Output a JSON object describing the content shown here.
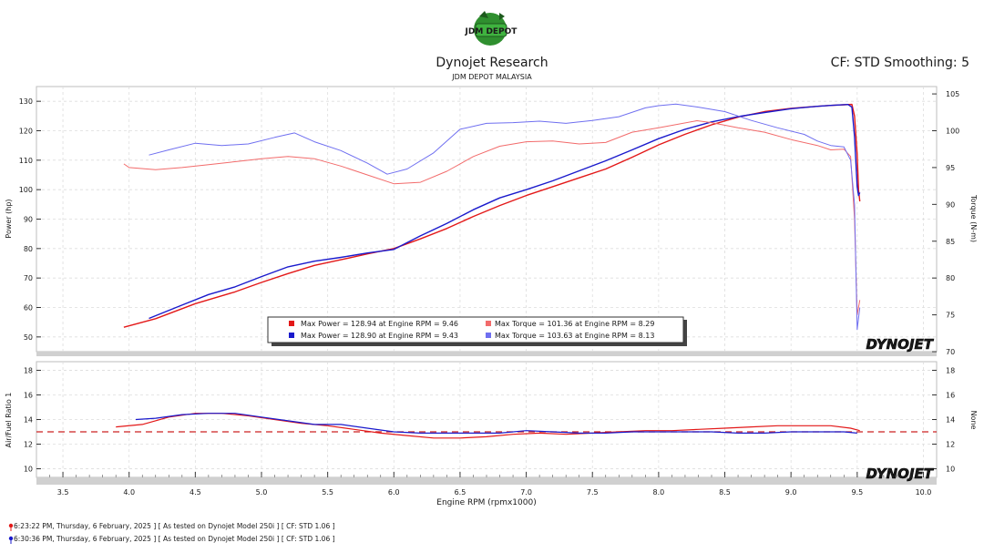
{
  "header": {
    "title": "Dynojet Research",
    "subtitle": "JDM DEPOT MALAYSIA",
    "cf_label": "CF: STD Smoothing: 5",
    "logo_text": "JDM DEPOT"
  },
  "brand_watermark": "DYNOJET",
  "colors": {
    "run1_power": "#e31818",
    "run2_power": "#1a1acc",
    "run1_torque": "#f26b6b",
    "run2_torque": "#6f6ff0",
    "afr_target": "#cc2222",
    "background_band": "#f2f2f2"
  },
  "footer": {
    "runs": [
      "6:23:22 PM, Thursday, 6 February, 2025 ] [ As tested on Dynojet Model 250i ] [ CF: STD 1.06 ]",
      "6:30:36 PM, Thursday, 6 February, 2025 ] [ As tested on Dynojet Model 250i ] [ CF: STD 1.06 ]"
    ]
  },
  "chart_data": [
    {
      "type": "line",
      "xlabel": "Engine RPM (rpmx1000)",
      "ylabel": "Power (hp)",
      "y2label": "Torque (N-m)",
      "xlim": [
        3.3,
        10.1
      ],
      "ylim": [
        45,
        135
      ],
      "y2lim": [
        70,
        106
      ],
      "xticks": [
        3.5,
        4.0,
        4.5,
        5.0,
        5.5,
        6.0,
        6.5,
        7.0,
        7.5,
        8.0,
        8.5,
        9.0,
        9.5,
        10.0
      ],
      "xtick_labels": [
        "3.5",
        "4.0",
        "4.5",
        "5.0",
        "5.5",
        "6.0",
        "6.5",
        "7.0",
        "7.5",
        "8.0",
        "8.5",
        "9.0",
        "9.5",
        "10.0"
      ],
      "yticks": [
        50,
        60,
        70,
        80,
        90,
        100,
        110,
        120,
        130
      ],
      "y2ticks": [
        70,
        75,
        80,
        85,
        90,
        95,
        100,
        105
      ],
      "grid": true,
      "legend": {
        "placement": "bottom-center",
        "entries": [
          "Max Power = 128.94 at Engine RPM = 9.46",
          "Max Torque = 101.36 at Engine RPM = 8.29",
          "Max Power = 128.90 at Engine RPM = 9.43",
          "Max Torque = 103.63 at Engine RPM = 8.13"
        ]
      },
      "series": [
        {
          "axis": "power",
          "x": [
            3.96,
            4.2,
            4.5,
            4.8,
            5.0,
            5.2,
            5.4,
            5.6,
            5.8,
            6.0,
            6.2,
            6.4,
            6.6,
            6.8,
            7.0,
            7.2,
            7.4,
            7.6,
            7.8,
            8.0,
            8.2,
            8.4,
            8.6,
            8.8,
            9.0,
            9.2,
            9.3,
            9.4,
            9.46,
            9.48,
            9.5,
            9.51,
            9.52
          ],
          "values": [
            53.3,
            56.2,
            61.3,
            65.3,
            68.5,
            71.5,
            74.3,
            76.2,
            78.2,
            80.0,
            83.3,
            86.8,
            90.9,
            94.6,
            98.0,
            101.0,
            104.0,
            107.0,
            111.0,
            115.2,
            118.8,
            122.0,
            124.6,
            126.5,
            127.6,
            128.3,
            128.6,
            128.8,
            128.94,
            125.0,
            112.0,
            100.0,
            96.0
          ]
        },
        {
          "axis": "power",
          "x": [
            4.15,
            4.4,
            4.6,
            4.8,
            5.0,
            5.2,
            5.4,
            5.6,
            5.8,
            6.0,
            6.2,
            6.4,
            6.6,
            6.8,
            7.0,
            7.2,
            7.4,
            7.6,
            7.8,
            8.0,
            8.2,
            8.4,
            8.6,
            8.8,
            9.0,
            9.2,
            9.3,
            9.43,
            9.46,
            9.48,
            9.5,
            9.51,
            9.52
          ],
          "values": [
            56.3,
            60.8,
            64.4,
            67.0,
            70.5,
            73.8,
            75.7,
            77.0,
            78.5,
            79.7,
            84.3,
            88.5,
            93.2,
            97.2,
            100.0,
            103.0,
            106.4,
            109.8,
            113.5,
            117.3,
            120.5,
            123.0,
            124.8,
            126.2,
            127.5,
            128.3,
            128.6,
            128.9,
            128.0,
            118.0,
            101.0,
            98.0,
            99.0
          ]
        },
        {
          "axis": "torque",
          "x": [
            3.96,
            4.0,
            4.2,
            4.4,
            4.6,
            4.8,
            5.0,
            5.2,
            5.4,
            5.6,
            5.8,
            6.0,
            6.2,
            6.4,
            6.6,
            6.8,
            7.0,
            7.2,
            7.4,
            7.6,
            7.8,
            8.0,
            8.29,
            8.4,
            8.6,
            8.8,
            9.0,
            9.2,
            9.3,
            9.4,
            9.45,
            9.48,
            9.5,
            9.52
          ],
          "values": [
            95.5,
            95.0,
            94.7,
            95.0,
            95.4,
            95.8,
            96.2,
            96.5,
            96.2,
            95.2,
            94.0,
            92.8,
            93.0,
            94.5,
            96.5,
            97.9,
            98.5,
            98.6,
            98.2,
            98.4,
            99.8,
            100.4,
            101.36,
            101.1,
            100.4,
            99.8,
            98.8,
            98.0,
            97.4,
            97.5,
            96.5,
            88.0,
            75.0,
            77.0
          ]
        },
        {
          "axis": "torque",
          "x": [
            4.15,
            4.3,
            4.5,
            4.7,
            4.9,
            5.1,
            5.25,
            5.4,
            5.6,
            5.8,
            5.95,
            6.1,
            6.3,
            6.5,
            6.7,
            6.9,
            7.1,
            7.3,
            7.5,
            7.7,
            7.9,
            8.0,
            8.13,
            8.3,
            8.5,
            8.7,
            8.9,
            9.1,
            9.2,
            9.3,
            9.4,
            9.45,
            9.48,
            9.5,
            9.52
          ],
          "values": [
            96.7,
            97.4,
            98.3,
            98.0,
            98.2,
            99.1,
            99.7,
            98.5,
            97.3,
            95.6,
            94.1,
            94.8,
            97.0,
            100.2,
            101.0,
            101.1,
            101.3,
            101.0,
            101.4,
            101.9,
            103.1,
            103.4,
            103.63,
            103.2,
            102.6,
            101.4,
            100.4,
            99.5,
            98.6,
            98.0,
            97.8,
            96.0,
            90.0,
            73.0,
            76.0
          ]
        }
      ]
    },
    {
      "type": "line",
      "xlabel": "Engine RPM (rpmx1000)",
      "ylabel": "Air/Fuel Ratio 1",
      "y2label": "None",
      "xlim": [
        3.3,
        10.1
      ],
      "ylim": [
        9.3,
        18.7
      ],
      "yticks": [
        10,
        12,
        14,
        16,
        18
      ],
      "target_afr": 13.0,
      "grid": true,
      "series": [
        {
          "x": [
            3.9,
            4.1,
            4.3,
            4.5,
            4.7,
            4.9,
            5.1,
            5.3,
            5.5,
            5.7,
            5.9,
            6.1,
            6.3,
            6.5,
            6.7,
            6.9,
            7.1,
            7.3,
            7.5,
            7.7,
            7.9,
            8.1,
            8.3,
            8.5,
            8.7,
            8.9,
            9.1,
            9.3,
            9.45,
            9.52
          ],
          "values": [
            13.4,
            13.6,
            14.2,
            14.5,
            14.5,
            14.3,
            14.0,
            13.7,
            13.5,
            13.2,
            12.9,
            12.7,
            12.5,
            12.5,
            12.6,
            12.8,
            12.9,
            12.8,
            12.9,
            13.0,
            13.1,
            13.1,
            13.2,
            13.3,
            13.4,
            13.5,
            13.5,
            13.5,
            13.3,
            13.1
          ]
        },
        {
          "x": [
            4.05,
            4.2,
            4.4,
            4.6,
            4.8,
            5.0,
            5.2,
            5.4,
            5.6,
            5.8,
            6.0,
            6.2,
            6.4,
            6.6,
            6.8,
            7.0,
            7.2,
            7.4,
            7.6,
            7.8,
            8.0,
            8.2,
            8.4,
            8.6,
            8.8,
            9.0,
            9.2,
            9.4,
            9.5
          ],
          "values": [
            14.0,
            14.1,
            14.4,
            14.5,
            14.5,
            14.2,
            13.9,
            13.6,
            13.6,
            13.3,
            13.0,
            12.9,
            12.9,
            12.9,
            12.9,
            13.1,
            13.0,
            12.9,
            12.9,
            13.0,
            13.0,
            13.0,
            13.0,
            12.9,
            12.9,
            13.0,
            13.0,
            13.0,
            12.9
          ]
        }
      ]
    }
  ]
}
